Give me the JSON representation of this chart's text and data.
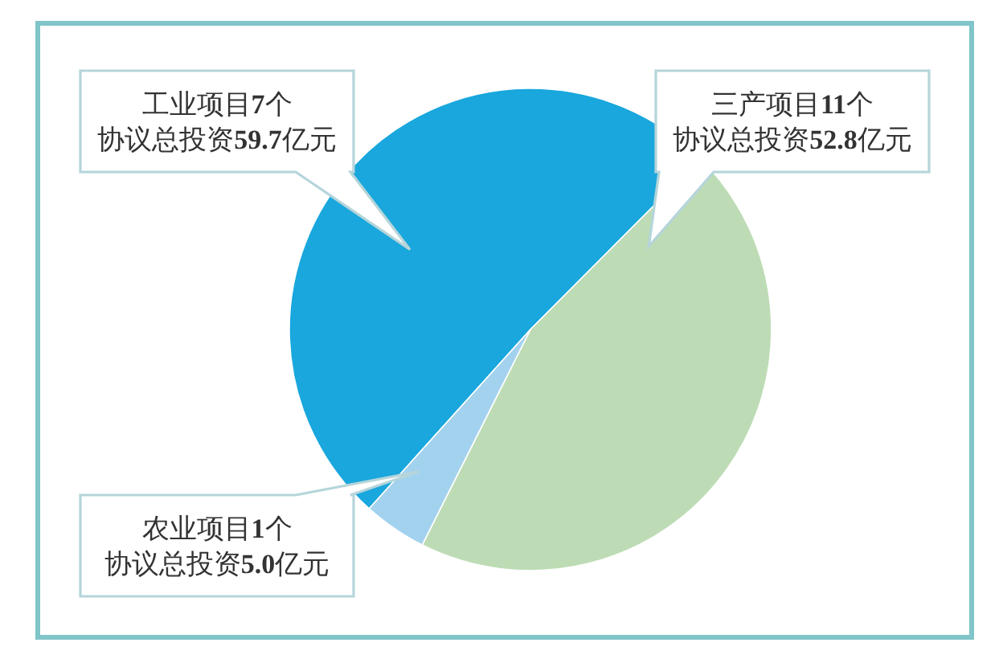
{
  "chart_data": {
    "type": "pie",
    "categories": [
      "工业项目7个",
      "三产项目11个",
      "农业项目1个"
    ],
    "values": [
      59.7,
      52.8,
      5.0
    ],
    "colors": [
      "#19a7dd",
      "#bddcb5",
      "#a3d2ee"
    ],
    "value_labels": [
      "协议总投资59.7亿元",
      "协议总投资52.8亿元",
      "协议总投资5.0亿元"
    ]
  }
}
